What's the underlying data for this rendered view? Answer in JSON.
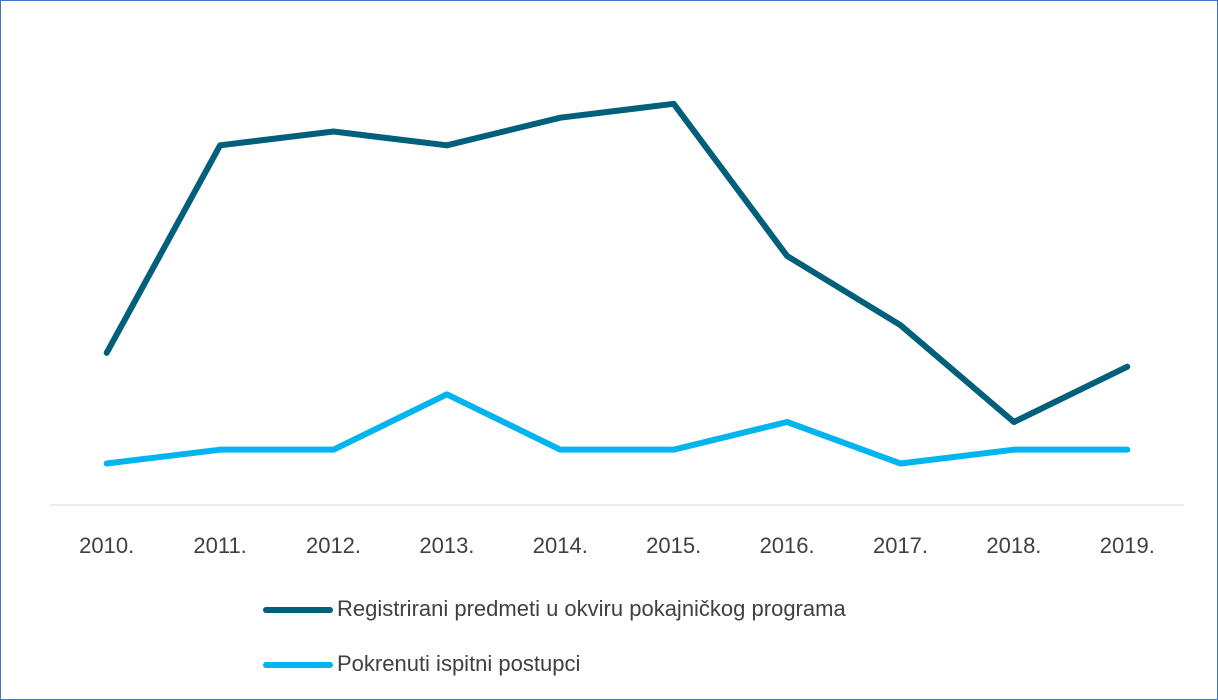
{
  "chart_data": {
    "type": "line",
    "categories": [
      "2010.",
      "2011.",
      "2012.",
      "2013.",
      "2014.",
      "2015.",
      "2016.",
      "2017.",
      "2018.",
      "2019."
    ],
    "series": [
      {
        "name": "Registrirani predmeti u okviru pokajničkog programa",
        "color": "#005f7a",
        "values": [
          11,
          26,
          27,
          26,
          28,
          29,
          18,
          13,
          6,
          10
        ]
      },
      {
        "name": "Pokrenuti ispitni postupci",
        "color": "#00b4f0",
        "values": [
          3,
          4,
          4,
          8,
          4,
          4,
          6,
          3,
          4,
          4
        ]
      }
    ],
    "ylim": [
      0,
      30
    ],
    "legend": "bottom"
  }
}
